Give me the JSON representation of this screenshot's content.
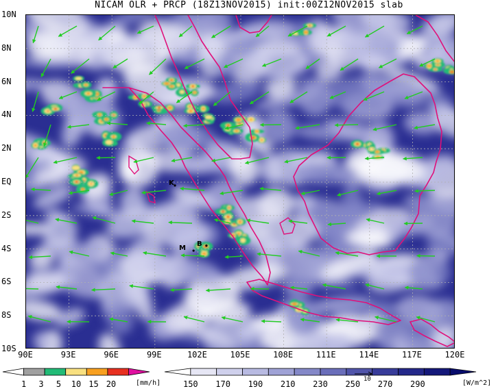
{
  "title": "NICAM OLR + PRCP (18Z13NOV2015) init:00Z12NOV2015 slab",
  "map": {
    "lon_range": [
      90,
      120
    ],
    "lat_range": [
      -10,
      10
    ],
    "grid": true,
    "lat_ticks": [
      "10N",
      "8N",
      "6N",
      "4N",
      "2N",
      "EQ",
      "2S",
      "4S",
      "6S",
      "8S",
      "10S"
    ],
    "lon_ticks": [
      "90E",
      "93E",
      "96E",
      "99E",
      "102E",
      "105E",
      "108E",
      "111E",
      "114E",
      "117E",
      "120E"
    ],
    "city_markers": [
      {
        "label": "K",
        "lon": 100.4,
        "lat": -0.2
      },
      {
        "label": "B",
        "lon": 102.6,
        "lat": -3.8
      },
      {
        "label": "M",
        "lon": 101.7,
        "lat": -4.1
      }
    ],
    "coastline_color": "#e0107a",
    "vector_color": "#22cc22"
  },
  "precip_legend": {
    "labels": [
      "1",
      "3",
      "5",
      "10",
      "15",
      "20"
    ],
    "unit": "[mm/h]",
    "colors": [
      "#ffffff",
      "#a0a0a0",
      "#22bb77",
      "#f8e080",
      "#f8a020",
      "#e83020",
      "#e010a0"
    ]
  },
  "olr_legend": {
    "labels": [
      "150",
      "170",
      "190",
      "210",
      "230",
      "250",
      "270",
      "290"
    ],
    "unit": "[W/m^2]",
    "colors": [
      "#ffffff",
      "#e6e6f4",
      "#cfd0ec",
      "#b8bae2",
      "#9fa2d6",
      "#8488c8",
      "#6a6eba",
      "#5054aa",
      "#383c9a",
      "#24288a",
      "#14187a",
      "#080c6c"
    ]
  },
  "reference_vector": {
    "label": "10"
  }
}
